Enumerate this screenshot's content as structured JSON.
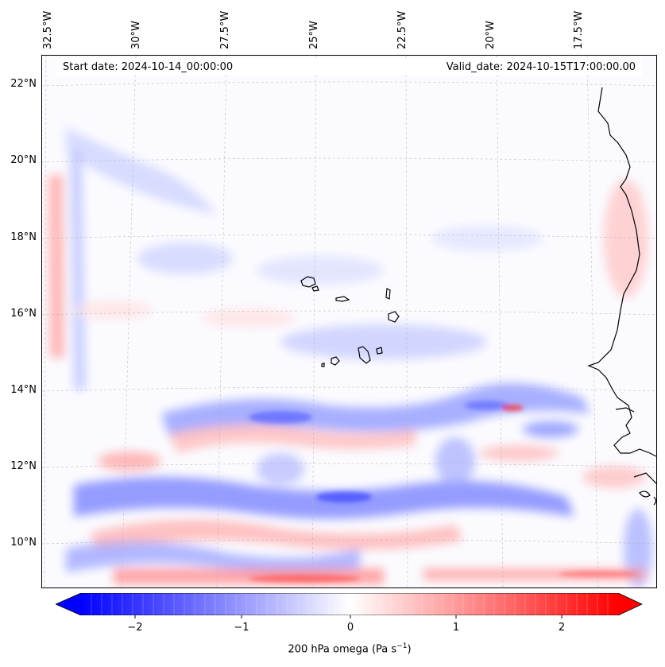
{
  "map": {
    "start_label": "Start date: 2024-10-14_00:00:00",
    "valid_label": "Valid_date: 2024-10-15T17:00:00.00",
    "longitude_labels": [
      "32.5°W",
      "30°W",
      "27.5°W",
      "25°W",
      "22.5°W",
      "20°W",
      "17.5°W"
    ],
    "latitude_labels": [
      "22°N",
      "20°N",
      "18°N",
      "16°N",
      "14°N",
      "12°N",
      "10°N"
    ],
    "colorbar": {
      "label": "200 hPa omega (Pa s",
      "label_exp": "−1",
      "label_close": ")",
      "ticks": [
        "−2",
        "−1",
        "0",
        "1",
        "2"
      ],
      "range": [
        -2.6,
        2.6
      ],
      "colors": {
        "negative": "#0000ff",
        "neutral": "#ffffff",
        "positive": "#ff0000"
      }
    }
  }
}
